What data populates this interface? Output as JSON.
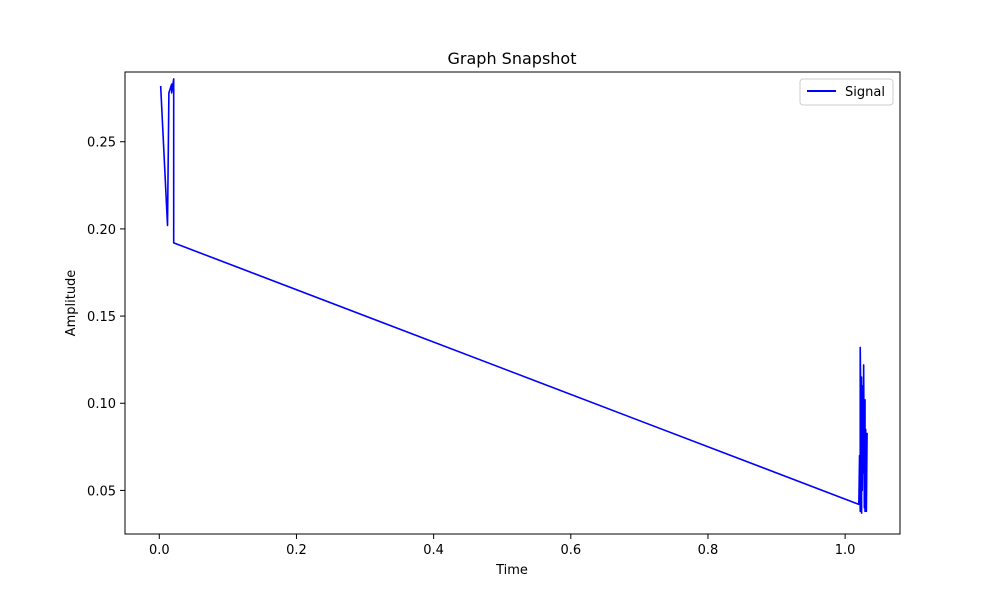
{
  "chart_data": {
    "type": "line",
    "title": "Graph Snapshot",
    "xlabel": "Time",
    "ylabel": "Amplitude",
    "xlim": [
      -0.05,
      1.08
    ],
    "ylim": [
      0.025,
      0.29
    ],
    "x_ticks": [
      0.0,
      0.2,
      0.4,
      0.6,
      0.8,
      1.0
    ],
    "x_tick_labels": [
      "0.0",
      "0.2",
      "0.4",
      "0.6",
      "0.8",
      "1.0"
    ],
    "y_ticks": [
      0.05,
      0.1,
      0.15,
      0.2,
      0.25
    ],
    "y_tick_labels": [
      "0.05",
      "0.10",
      "0.15",
      "0.20",
      "0.25"
    ],
    "grid": false,
    "legend_position": "top-right",
    "series": [
      {
        "name": "Signal",
        "color": "#0000ff",
        "x": [
          0.002,
          0.012,
          0.014,
          0.018,
          0.018,
          0.021,
          0.021,
          1.02,
          1.021,
          1.022,
          1.022,
          1.023,
          1.024,
          1.024,
          1.025,
          1.026,
          1.027,
          1.027,
          1.028,
          1.029,
          1.029,
          1.03,
          1.031,
          1.032
        ],
        "y": [
          0.282,
          0.202,
          0.278,
          0.283,
          0.278,
          0.286,
          0.192,
          0.042,
          0.07,
          0.038,
          0.132,
          0.095,
          0.037,
          0.115,
          0.05,
          0.11,
          0.06,
          0.122,
          0.04,
          0.102,
          0.038,
          0.085,
          0.038,
          0.083
        ]
      }
    ]
  }
}
